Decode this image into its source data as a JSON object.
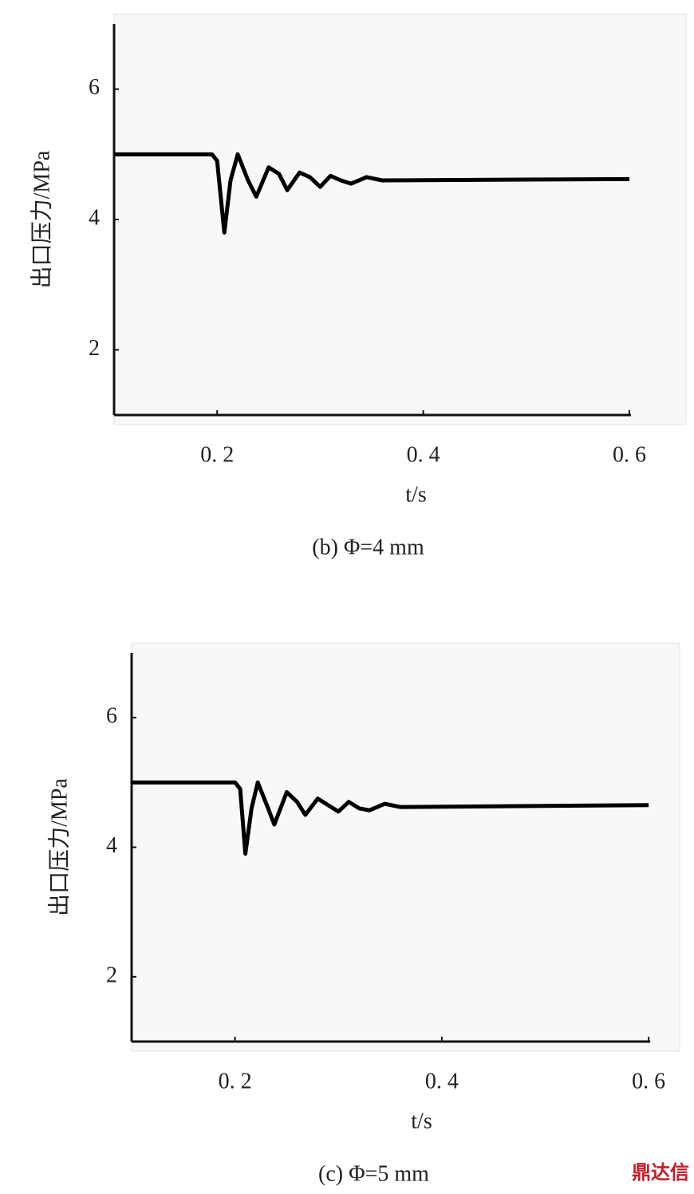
{
  "chart_data": [
    {
      "type": "line",
      "x_label": "t/s",
      "y_label": "出口压力/MPa",
      "caption": "(b)  Φ=4 mm",
      "xlim": [
        0.1,
        0.655
      ],
      "ylim": [
        1,
        7
      ],
      "xticks": [
        {
          "value": 0.2,
          "label": "0. 2"
        },
        {
          "value": 0.4,
          "label": "0. 4"
        },
        {
          "value": 0.6,
          "label": "0. 6"
        }
      ],
      "yticks": [
        2,
        4,
        6
      ],
      "series": [
        {
          "color": "#000000",
          "x": [
            0.1,
            0.195,
            0.2,
            0.207,
            0.213,
            0.22,
            0.23,
            0.238,
            0.25,
            0.26,
            0.268,
            0.28,
            0.29,
            0.3,
            0.31,
            0.32,
            0.33,
            0.345,
            0.36,
            0.6
          ],
          "values": [
            5,
            5,
            4.9,
            3.8,
            4.6,
            5.0,
            4.6,
            4.35,
            4.8,
            4.7,
            4.45,
            4.72,
            4.65,
            4.5,
            4.67,
            4.6,
            4.55,
            4.65,
            4.6,
            4.62
          ]
        }
      ]
    },
    {
      "type": "line",
      "x_label": "t/s",
      "y_label": "出口压力/MPa",
      "caption": "(c)  Φ=5 mm",
      "xlim": [
        0.1,
        0.63
      ],
      "ylim": [
        1,
        7
      ],
      "xticks": [
        {
          "value": 0.2,
          "label": "0. 2"
        },
        {
          "value": 0.4,
          "label": "0. 4"
        },
        {
          "value": 0.6,
          "label": "0. 6"
        }
      ],
      "yticks": [
        2,
        4,
        6
      ],
      "series": [
        {
          "color": "#000000",
          "x": [
            0.1,
            0.2,
            0.205,
            0.21,
            0.216,
            0.222,
            0.232,
            0.238,
            0.25,
            0.26,
            0.268,
            0.28,
            0.29,
            0.3,
            0.31,
            0.32,
            0.33,
            0.345,
            0.36,
            0.6
          ],
          "values": [
            5,
            5,
            4.9,
            3.9,
            4.6,
            5.0,
            4.6,
            4.35,
            4.85,
            4.7,
            4.5,
            4.75,
            4.65,
            4.55,
            4.7,
            4.6,
            4.57,
            4.67,
            4.62,
            4.65
          ]
        }
      ]
    }
  ],
  "watermark": "鼎达信"
}
